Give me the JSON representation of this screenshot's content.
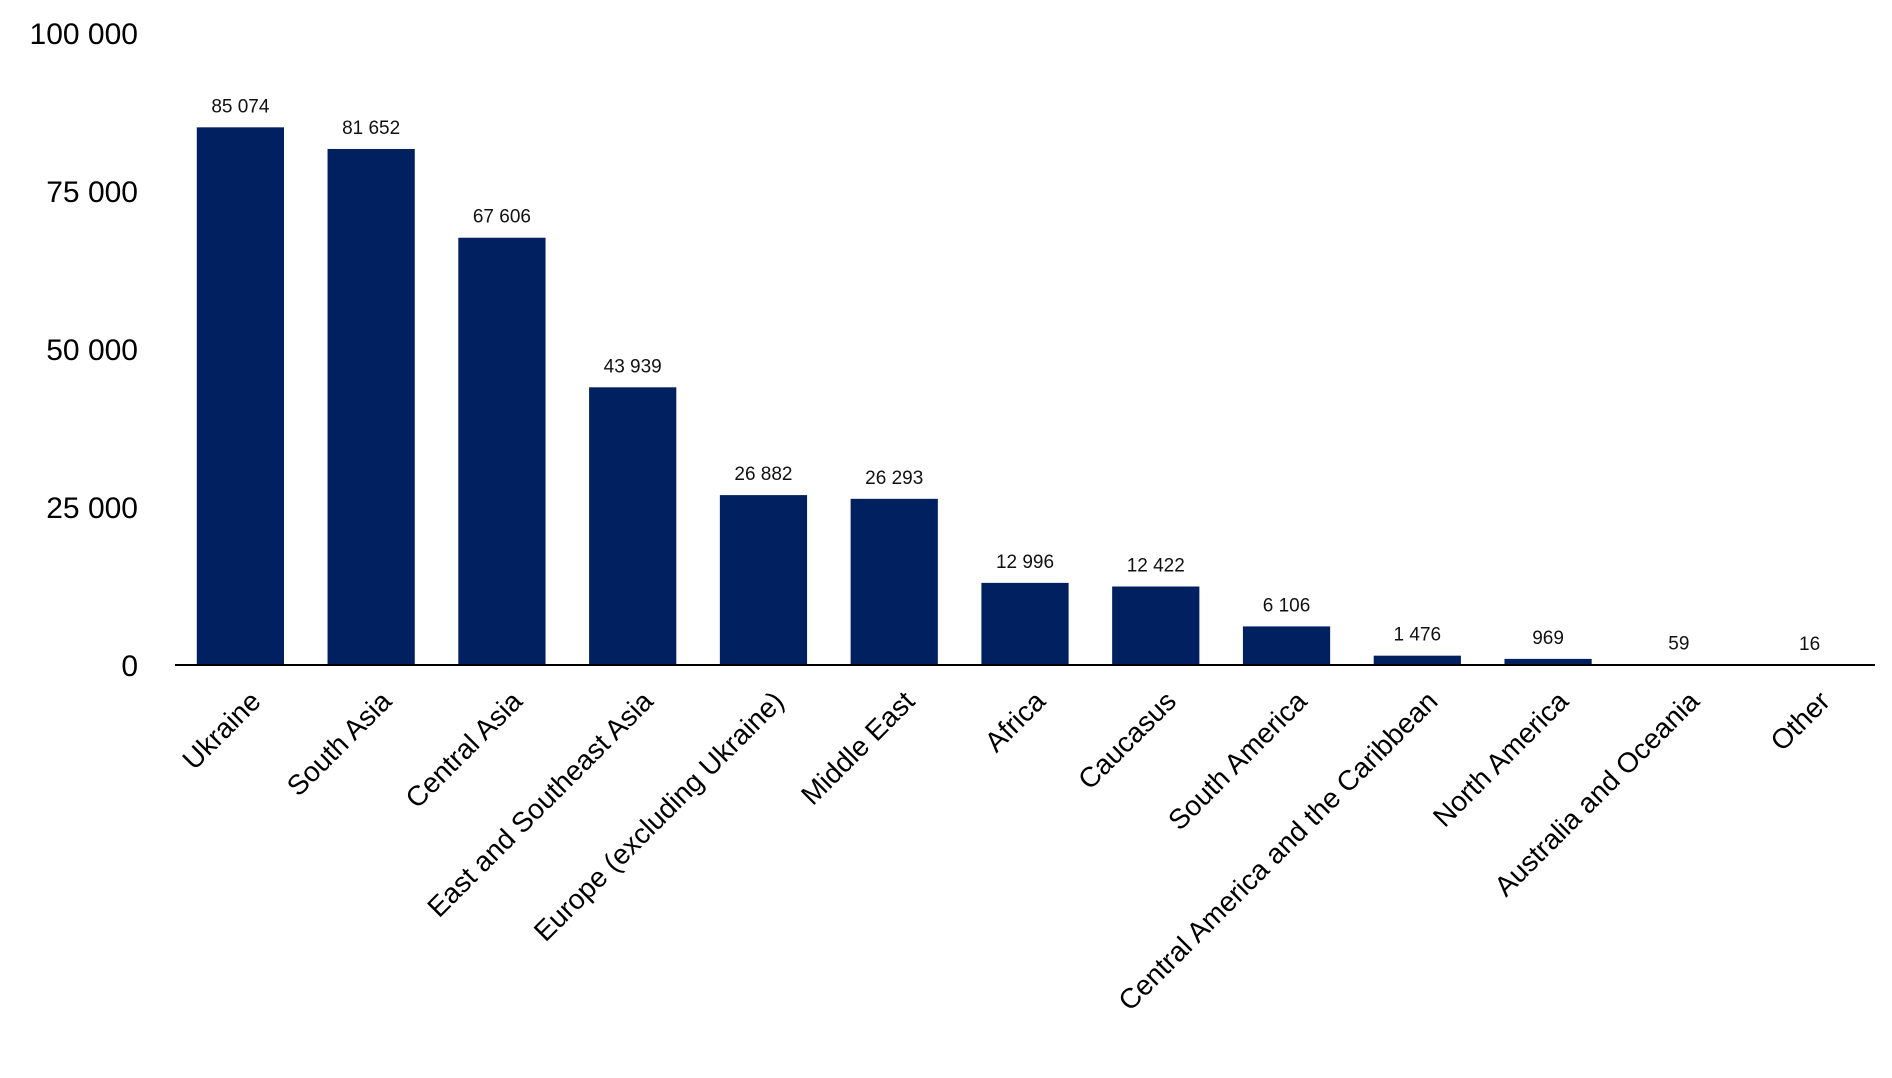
{
  "chart_data": {
    "type": "bar",
    "categories": [
      "Ukraine",
      "South Asia",
      "Central Asia",
      "East and Southeast Asia",
      "Europe (excluding Ukraine)",
      "Middle East",
      "Africa",
      "Caucasus",
      "South America",
      "Central America and the Caribbean",
      "North America",
      "Australia and Oceania",
      "Other"
    ],
    "values": [
      85074,
      81652,
      67606,
      43939,
      26882,
      26293,
      12996,
      12422,
      6106,
      1476,
      969,
      59,
      16
    ],
    "data_labels": [
      "85 074",
      "81 652",
      "67 606",
      "43 939",
      "26 882",
      "26 293",
      "12 996",
      "12 422",
      "6 106",
      "1 476",
      "969",
      "59",
      "16"
    ],
    "yticks": [
      0,
      25000,
      50000,
      75000,
      100000
    ],
    "ytick_labels": [
      "0",
      "25 000",
      "50 000",
      "75 000",
      "100 000"
    ],
    "ylim": [
      0,
      100000
    ],
    "title": "",
    "xlabel": "",
    "ylabel": "",
    "grid": false,
    "bar_color": "#002060"
  }
}
